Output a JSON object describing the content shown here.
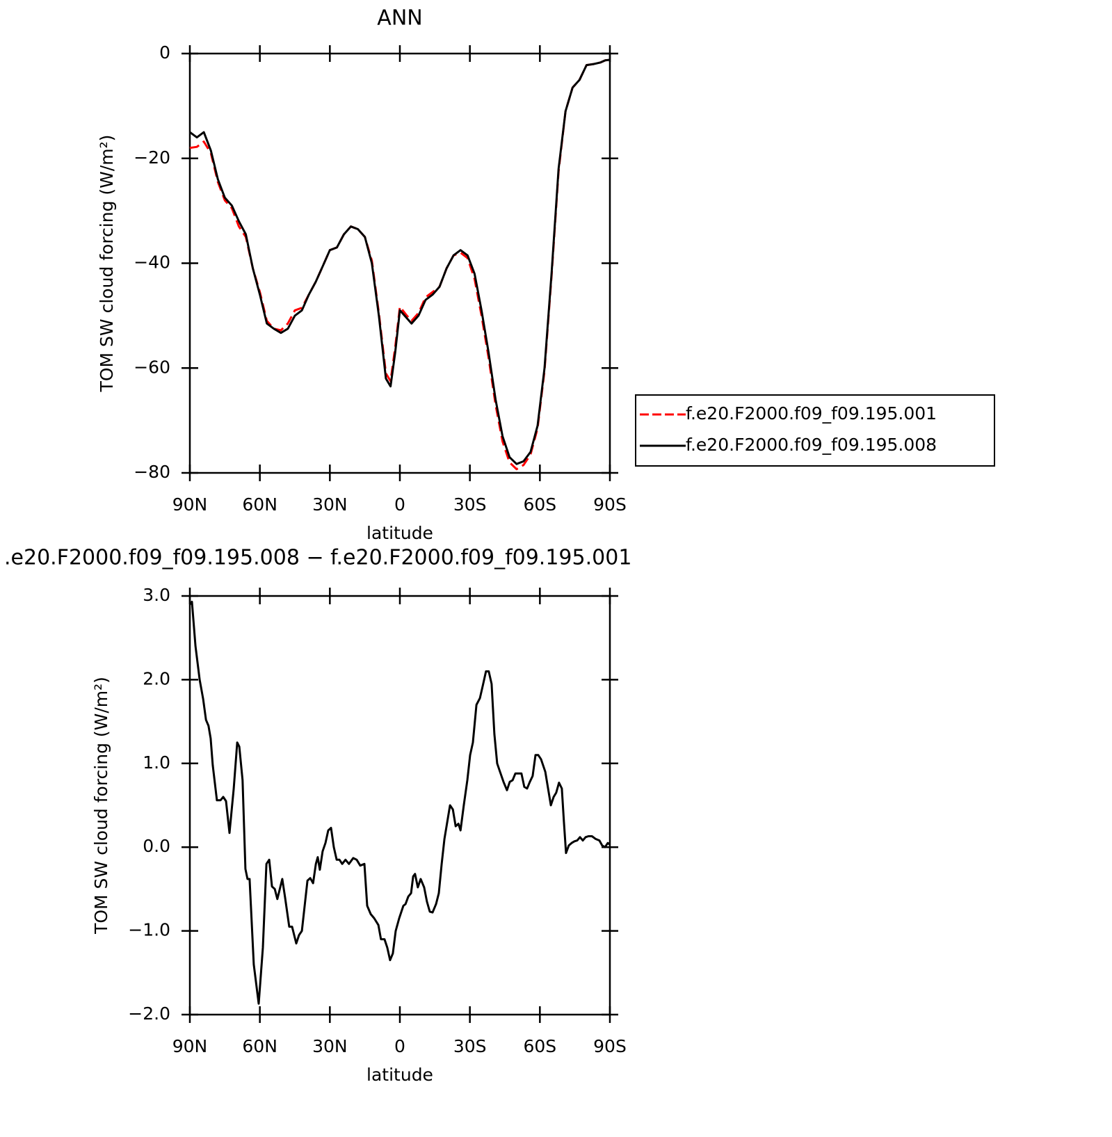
{
  "chart_data": [
    {
      "type": "line",
      "title": "ANN",
      "xlabel": "latitude",
      "ylabel": "TOM SW cloud forcing (W/m²)",
      "xlim": [
        90,
        -90
      ],
      "xticks": [
        {
          "value": 90,
          "label": "90N"
        },
        {
          "value": 60,
          "label": "60N"
        },
        {
          "value": 30,
          "label": "30N"
        },
        0,
        {
          "value": -30,
          "label": "30S"
        },
        {
          "value": -60,
          "label": "60S"
        },
        {
          "value": -90,
          "label": "90S"
        }
      ],
      "ylim": [
        -80,
        0
      ],
      "yticks": [
        {
          "value": -80,
          "label": "−80"
        },
        {
          "value": -60,
          "label": "−60"
        },
        {
          "value": -40,
          "label": "−40"
        },
        {
          "value": -20,
          "label": "−20"
        },
        0
      ],
      "legend": "right",
      "x": [
        90,
        87,
        84,
        81,
        78,
        75,
        72,
        69,
        66,
        63,
        60,
        57,
        54,
        51,
        48,
        45,
        42,
        39,
        36,
        33,
        30,
        27,
        24,
        21,
        18,
        15,
        12,
        9,
        6,
        4,
        2,
        0,
        -3,
        -5,
        -8,
        -11,
        -14,
        -17,
        -20,
        -23,
        -26,
        -29,
        -32,
        -35,
        -38,
        -41,
        -44,
        -47,
        -50,
        -53,
        -56,
        -59,
        -62,
        -65,
        -68,
        -71,
        -74,
        -77,
        -80,
        -83,
        -86,
        -88,
        -90
      ],
      "series": [
        {
          "name": "f.e20.F2000.f09_f09.195.001",
          "color": "#ff0000",
          "linestyle": "dashed",
          "values": [
            -18,
            -17.8,
            -16.8,
            -19,
            -24.5,
            -28,
            -29.5,
            -33,
            -35,
            -41,
            -45.5,
            -51,
            -52.5,
            -52.8,
            -51.5,
            -49,
            -48.5,
            -46,
            -43.5,
            -40.5,
            -37.5,
            -37,
            -34.5,
            -33,
            -33.5,
            -35,
            -39.5,
            -49.5,
            -61,
            -62.5,
            -56,
            -48.3,
            -50,
            -51,
            -49.5,
            -46.5,
            -45.5,
            -44.5,
            -41,
            -38.5,
            -38,
            -39,
            -43,
            -50,
            -58,
            -67,
            -74,
            -78,
            -79.3,
            -78.5,
            -76.5,
            -71.5,
            -60.5,
            -42.5,
            -22.5,
            -11,
            -6.5,
            -5,
            -2.2,
            -2,
            -1.7,
            -1.3,
            -1.2
          ]
        },
        {
          "name": "f.e20.F2000.f09_f09.195.008",
          "color": "#000000",
          "linestyle": "solid",
          "values": [
            -15,
            -16,
            -15,
            -18.5,
            -24,
            -27.5,
            -29,
            -32,
            -34.5,
            -41,
            -46,
            -51.5,
            -52.5,
            -53.3,
            -52.5,
            -50,
            -49,
            -46,
            -43.5,
            -40.5,
            -37.5,
            -37,
            -34.5,
            -33,
            -33.5,
            -35,
            -40,
            -50,
            -62,
            -63.5,
            -57,
            -49,
            -50.5,
            -51.5,
            -50,
            -47,
            -46,
            -44.5,
            -41,
            -38.5,
            -37.5,
            -38.5,
            -42,
            -49,
            -57,
            -66,
            -73,
            -77,
            -78.3,
            -77.8,
            -76,
            -71,
            -60,
            -42,
            -22,
            -11,
            -6.5,
            -5,
            -2.2,
            -2,
            -1.7,
            -1.3,
            -1.2
          ]
        }
      ]
    },
    {
      "type": "line",
      "title": ".e20.F2000.f09_f09.195.008 − f.e20.F2000.f09_f09.195.001",
      "xlabel": "latitude",
      "ylabel": "TOM SW cloud forcing (W/m²)",
      "xlim": [
        90,
        -90
      ],
      "xticks": [
        {
          "value": 90,
          "label": "90N"
        },
        {
          "value": 60,
          "label": "60N"
        },
        {
          "value": 30,
          "label": "30N"
        },
        0,
        {
          "value": -30,
          "label": "30S"
        },
        {
          "value": -60,
          "label": "60S"
        },
        {
          "value": -90,
          "label": "90S"
        }
      ],
      "ylim": [
        -2,
        3
      ],
      "yticks": [
        {
          "value": -2,
          "label": "−2.0"
        },
        {
          "value": -1,
          "label": "−1.0"
        },
        {
          "value": 0,
          "label": "0.0"
        },
        {
          "value": 1,
          "label": "1.0"
        },
        {
          "value": 2,
          "label": "2.0"
        },
        {
          "value": 3,
          "label": "3.0"
        }
      ],
      "x": [
        90,
        89.1,
        87.6,
        85.8,
        84.3,
        83.1,
        82,
        81.1,
        80.2,
        78.4,
        76.9,
        75.7,
        74.5,
        73,
        71.2,
        69.7,
        68.8,
        67.4,
        66.2,
        65.3,
        64.4,
        62.6,
        60.5,
        58.7,
        57.2,
        56,
        54.8,
        53.6,
        52.5,
        50.4,
        49.2,
        47.4,
        46.2,
        44.4,
        43.2,
        42,
        40.8,
        39.6,
        38.4,
        37.2,
        36,
        35.2,
        34.3,
        33.1,
        31.9,
        30.7,
        29.5,
        28.3,
        27.1,
        25.9,
        24.7,
        23.3,
        21.8,
        20,
        18.5,
        17,
        15.2,
        14,
        12.5,
        11,
        9.2,
        8.1,
        6.6,
        5.4,
        4.2,
        3,
        1.8,
        0.3,
        -1.5,
        -2.4,
        -3.6,
        -4.8,
        -5.7,
        -6.5,
        -7.7,
        -8.9,
        -10.4,
        -11.6,
        -12.8,
        -14,
        -15.5,
        -16.7,
        -17.9,
        -19.1,
        -20.3,
        -21.5,
        -22.7,
        -23.9,
        -25.1,
        -26,
        -27.4,
        -28.9,
        -30.1,
        -31.3,
        -32.8,
        -34.3,
        -35.7,
        -36.9,
        -38.1,
        -39.3,
        -40.5,
        -41.7,
        -42.9,
        -44.4,
        -45.9,
        -47.1,
        -48.3,
        -49.5,
        -50.9,
        -52.1,
        -53.3,
        -54.5,
        -55.7,
        -56.9,
        -58.1,
        -59.3,
        -60.5,
        -62.3,
        -63.5,
        -64.7,
        -65.9,
        -67,
        -68.2,
        -69.4,
        -70.3,
        -71.2,
        -72.4,
        -73.6,
        -74.8,
        -76,
        -77.2,
        -78.4,
        -79.6,
        -80.8,
        -82.3,
        -83.8,
        -85.5,
        -86.7,
        -87.9,
        -89.1,
        -90
      ],
      "series": [
        {
          "color": "#000000",
          "linestyle": "solid",
          "values": [
            2.9,
            2.93,
            2.4,
            2.0,
            1.77,
            1.52,
            1.45,
            1.3,
            0.98,
            0.56,
            0.56,
            0.6,
            0.55,
            0.17,
            0.7,
            1.25,
            1.2,
            0.8,
            -0.26,
            -0.38,
            -0.38,
            -1.4,
            -1.87,
            -1.2,
            -0.2,
            -0.15,
            -0.47,
            -0.5,
            -0.62,
            -0.38,
            -0.6,
            -0.95,
            -0.95,
            -1.15,
            -1.05,
            -1.0,
            -0.7,
            -0.4,
            -0.37,
            -0.43,
            -0.2,
            -0.12,
            -0.27,
            -0.05,
            0.05,
            0.2,
            0.23,
            0.0,
            -0.15,
            -0.15,
            -0.2,
            -0.15,
            -0.2,
            -0.13,
            -0.15,
            -0.22,
            -0.2,
            -0.7,
            -0.8,
            -0.85,
            -0.93,
            -1.1,
            -1.1,
            -1.2,
            -1.35,
            -1.27,
            -1.0,
            -0.85,
            -0.7,
            -0.68,
            -0.59,
            -0.55,
            -0.35,
            -0.32,
            -0.48,
            -0.38,
            -0.48,
            -0.65,
            -0.77,
            -0.78,
            -0.68,
            -0.55,
            -0.2,
            0.1,
            0.3,
            0.5,
            0.45,
            0.25,
            0.28,
            0.2,
            0.5,
            0.8,
            1.1,
            1.25,
            1.7,
            1.78,
            1.95,
            2.1,
            2.1,
            1.95,
            1.35,
            1.0,
            0.9,
            0.78,
            0.68,
            0.78,
            0.8,
            0.88,
            0.88,
            0.88,
            0.72,
            0.7,
            0.78,
            0.85,
            1.1,
            1.1,
            1.05,
            0.9,
            0.7,
            0.5,
            0.6,
            0.65,
            0.77,
            0.7,
            0.3,
            -0.07,
            0.02,
            0.05,
            0.07,
            0.08,
            0.12,
            0.08,
            0.12,
            0.13,
            0.13,
            0.1,
            0.08,
            0.02,
            0.0,
            0.05,
            0.03
          ]
        }
      ]
    }
  ]
}
